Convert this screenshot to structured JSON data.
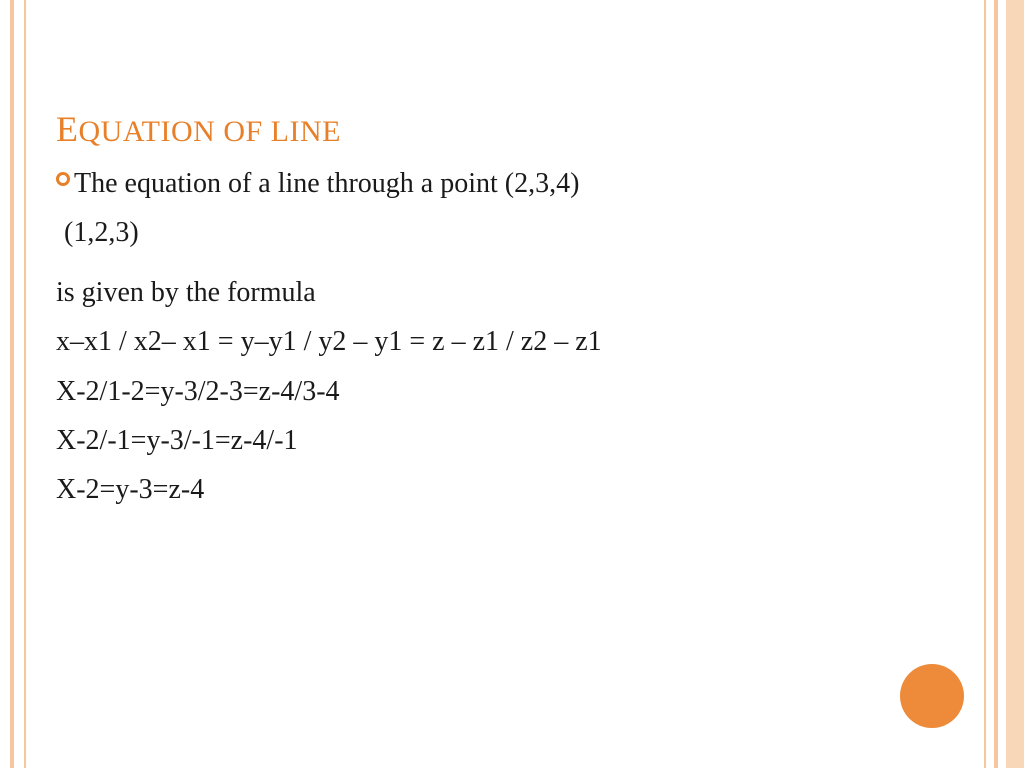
{
  "colors": {
    "accent": "#e8802a",
    "circle": "#ed8b3a",
    "border_light": "#f8d6b8",
    "border": "#f6c79f",
    "text": "#1a1a1a",
    "background": "#ffffff"
  },
  "title": {
    "first_letter": "E",
    "rest": "QUATION OF LINE"
  },
  "lines": {
    "l1": "The equation of a line through a point (2,3,4)",
    "l2": "(1,2,3)",
    "l3": "is given by the formula",
    "l4": "x–x1 / x2– x1 = y–y1 / y2 – y1 = z – z1 / z2 – z1",
    "l5": "X-2/1-2=y-3/2-3=z-4/3-4",
    "l6": "X-2/-1=y-3/-1=z-4/-1",
    "l7": "X-2=y-3=z-4"
  },
  "typography": {
    "title_fontsize": 30,
    "title_first_fontsize": 36,
    "body_fontsize": 28,
    "font_family": "Georgia"
  },
  "decor": {
    "circle_diameter": 64
  }
}
